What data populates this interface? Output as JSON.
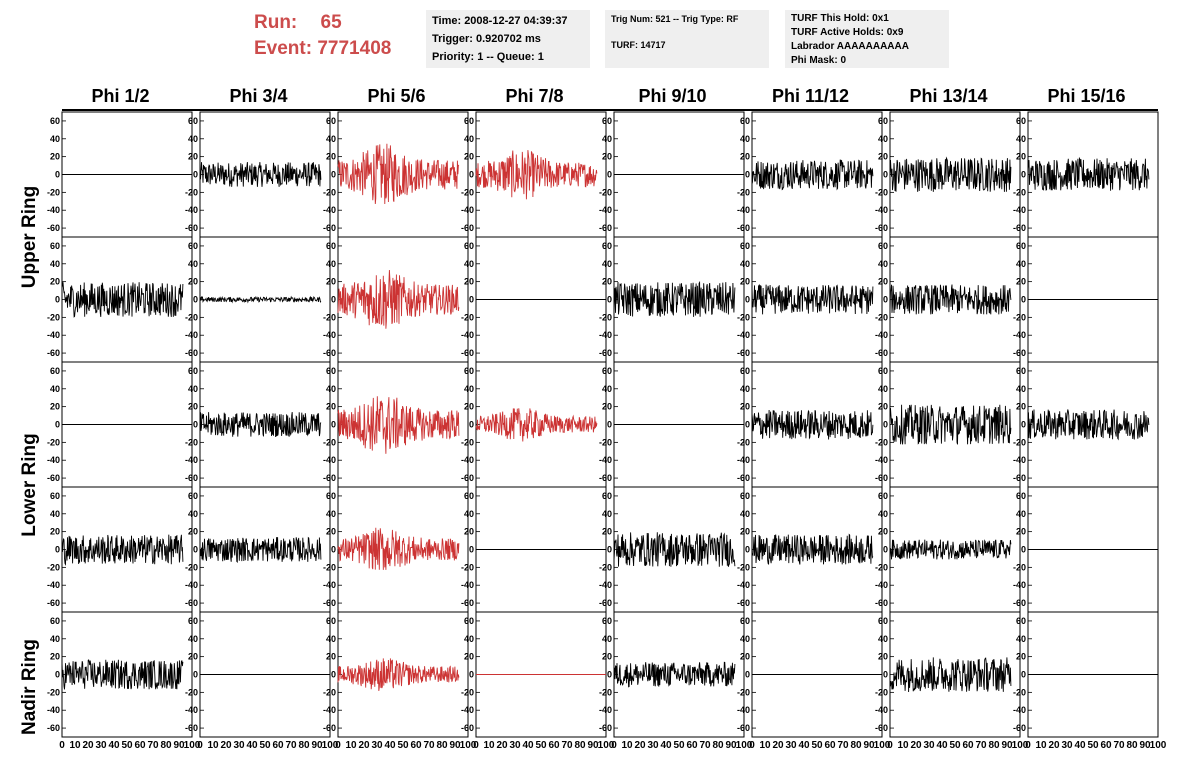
{
  "header": {
    "run_label": "Run:",
    "run_value": "65",
    "event_label": "Event:",
    "event_value": "7771408"
  },
  "info_boxes": {
    "time": "Time: 2008-12-27 04:39:37",
    "trigger": "Trigger: 0.920702 ms",
    "priority": "Priority: 1 -- Queue: 1",
    "trig_num": "Trig Num: 521 -- Trig Type: RF",
    "turf": "TURF: 14717",
    "turf_hold": "TURF This Hold: 0x1",
    "turf_active": "TURF Active Holds: 0x9",
    "labrador": "Labrador AAAAAAAAAA",
    "phi_mask": "Phi Mask: 0"
  },
  "columns": [
    "Phi 1/2",
    "Phi 3/4",
    "Phi 5/6",
    "Phi 7/8",
    "Phi 9/10",
    "Phi 11/12",
    "Phi 13/14",
    "Phi 15/16"
  ],
  "ring_labels": [
    "Upper Ring",
    "Lower Ring",
    "Nadir Ring"
  ],
  "colors": {
    "normal": "#000000",
    "highlight": "#cc3333",
    "title_red": "#cc4c4c",
    "info_bg": "#efefef"
  },
  "chart_data": {
    "type": "line",
    "xlim": [
      0,
      100
    ],
    "ylim": [
      -70,
      70
    ],
    "x_ticks": [
      "0",
      "10",
      "20",
      "30",
      "40",
      "50",
      "60",
      "70",
      "80",
      "90",
      "100"
    ],
    "y_ticks": [
      "60",
      "40",
      "20",
      "0",
      "-20",
      "-40",
      "-60"
    ],
    "rows": 5,
    "cols": 8,
    "panels": [
      [
        {
          "amp": 0,
          "color": "black"
        },
        {
          "amp": 10,
          "color": "black"
        },
        {
          "amp": 22,
          "color": "red"
        },
        {
          "amp": 18,
          "color": "red"
        },
        {
          "amp": 0,
          "color": "black"
        },
        {
          "amp": 12,
          "color": "black"
        },
        {
          "amp": 14,
          "color": "black"
        },
        {
          "amp": 13,
          "color": "black"
        }
      ],
      [
        {
          "amp": 14,
          "color": "black"
        },
        {
          "amp": 2,
          "color": "black"
        },
        {
          "amp": 22,
          "color": "red"
        },
        {
          "amp": 0,
          "color": "black"
        },
        {
          "amp": 14,
          "color": "black"
        },
        {
          "amp": 12,
          "color": "black"
        },
        {
          "amp": 12,
          "color": "black"
        },
        {
          "amp": 0,
          "color": "black"
        }
      ],
      [
        {
          "amp": 0,
          "color": "black"
        },
        {
          "amp": 10,
          "color": "black"
        },
        {
          "amp": 22,
          "color": "red"
        },
        {
          "amp": 12,
          "color": "red"
        },
        {
          "amp": 0,
          "color": "black"
        },
        {
          "amp": 12,
          "color": "black"
        },
        {
          "amp": 16,
          "color": "black"
        },
        {
          "amp": 12,
          "color": "black"
        }
      ],
      [
        {
          "amp": 12,
          "color": "black"
        },
        {
          "amp": 10,
          "color": "black"
        },
        {
          "amp": 16,
          "color": "red"
        },
        {
          "amp": 0,
          "color": "black"
        },
        {
          "amp": 14,
          "color": "black"
        },
        {
          "amp": 12,
          "color": "black"
        },
        {
          "amp": 8,
          "color": "black"
        },
        {
          "amp": 0,
          "color": "black"
        }
      ],
      [
        {
          "amp": 12,
          "color": "black"
        },
        {
          "amp": 0,
          "color": "black"
        },
        {
          "amp": 12,
          "color": "red"
        },
        {
          "amp": 0,
          "color": "red"
        },
        {
          "amp": 10,
          "color": "black"
        },
        {
          "amp": 0,
          "color": "black"
        },
        {
          "amp": 14,
          "color": "black"
        },
        {
          "amp": 0,
          "color": "black"
        }
      ]
    ]
  }
}
